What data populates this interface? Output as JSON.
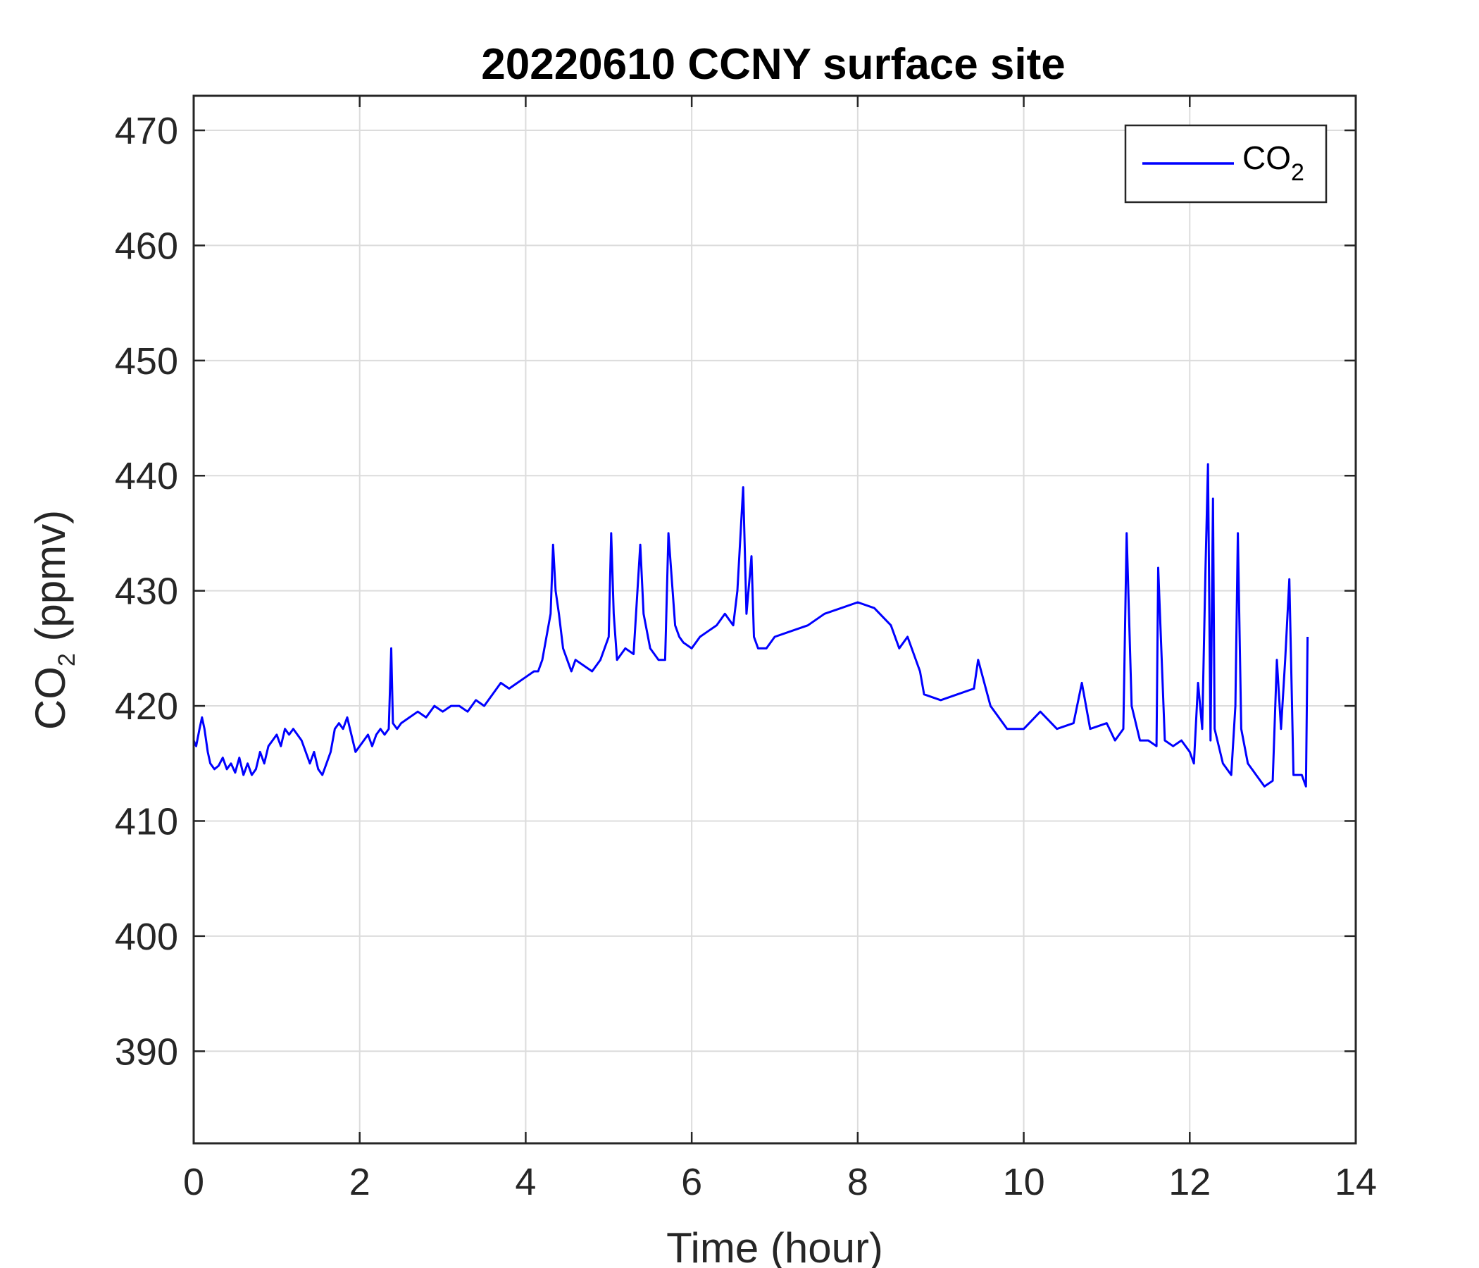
{
  "chart_data": {
    "type": "line",
    "title": "20220610 CCNY surface site",
    "xlabel": "Time (hour)",
    "ylabel_main": "CO",
    "ylabel_sub": "2",
    "ylabel_unit": " (ppmv)",
    "xlim": [
      0,
      14
    ],
    "ylim": [
      382,
      473
    ],
    "xticks": [
      0,
      2,
      4,
      6,
      8,
      10,
      12,
      14
    ],
    "yticks": [
      390,
      400,
      410,
      420,
      430,
      440,
      450,
      460,
      470
    ],
    "grid": true,
    "legend_position": "top-right",
    "colors": {
      "line": "#0000ff",
      "grid": "#dcdcdc",
      "axis": "#262626"
    },
    "series": [
      {
        "name_main": "CO",
        "name_sub": "2",
        "x": [
          0,
          0.03,
          0.07,
          0.1,
          0.13,
          0.17,
          0.2,
          0.25,
          0.3,
          0.35,
          0.4,
          0.45,
          0.5,
          0.55,
          0.6,
          0.65,
          0.7,
          0.75,
          0.8,
          0.85,
          0.9,
          0.95,
          1.0,
          1.05,
          1.1,
          1.15,
          1.2,
          1.25,
          1.3,
          1.35,
          1.4,
          1.45,
          1.5,
          1.55,
          1.6,
          1.65,
          1.7,
          1.75,
          1.8,
          1.85,
          1.9,
          1.95,
          2.0,
          2.05,
          2.1,
          2.15,
          2.2,
          2.25,
          2.3,
          2.35,
          2.38,
          2.4,
          2.45,
          2.5,
          2.6,
          2.7,
          2.8,
          2.9,
          3.0,
          3.1,
          3.2,
          3.3,
          3.4,
          3.5,
          3.6,
          3.7,
          3.8,
          3.9,
          4.0,
          4.1,
          4.15,
          4.2,
          4.25,
          4.3,
          4.33,
          4.36,
          4.4,
          4.45,
          4.5,
          4.55,
          4.6,
          4.7,
          4.8,
          4.9,
          5.0,
          5.03,
          5.06,
          5.1,
          5.2,
          5.3,
          5.38,
          5.42,
          5.5,
          5.6,
          5.68,
          5.72,
          5.8,
          5.85,
          5.9,
          6.0,
          6.1,
          6.2,
          6.3,
          6.4,
          6.5,
          6.55,
          6.62,
          6.66,
          6.72,
          6.75,
          6.8,
          6.9,
          7.0,
          7.2,
          7.4,
          7.6,
          7.8,
          8.0,
          8.2,
          8.4,
          8.5,
          8.6,
          8.75,
          8.8,
          9.0,
          9.2,
          9.4,
          9.45,
          9.6,
          9.8,
          10.0,
          10.2,
          10.4,
          10.6,
          10.7,
          10.8,
          11.0,
          11.1,
          11.2,
          11.24,
          11.3,
          11.4,
          11.5,
          11.6,
          11.62,
          11.7,
          11.8,
          11.9,
          12.0,
          12.05,
          12.1,
          12.15,
          12.19,
          12.22,
          12.25,
          12.28,
          12.3,
          12.4,
          12.5,
          12.55,
          12.58,
          12.62,
          12.7,
          12.8,
          12.9,
          13.0,
          13.05,
          13.1,
          13.15,
          13.2,
          13.25,
          13.3,
          13.35,
          13.4,
          13.42
        ],
        "y": [
          417,
          416.5,
          418,
          419,
          418,
          416,
          415,
          414.5,
          414.8,
          415.5,
          414.5,
          415,
          414.2,
          415.5,
          414,
          415,
          414,
          414.5,
          416,
          415,
          416.5,
          417,
          417.5,
          416.5,
          418,
          417.5,
          418,
          417.5,
          417,
          416,
          415,
          416,
          414.5,
          414,
          415,
          416,
          418,
          418.5,
          418,
          419,
          417.5,
          416,
          416.5,
          417,
          417.5,
          416.5,
          417.5,
          418,
          417.5,
          418,
          425,
          418.5,
          418,
          418.5,
          419,
          419.5,
          419,
          420,
          419.5,
          420,
          420,
          419.5,
          420.5,
          420,
          421,
          422,
          421.5,
          422,
          422.5,
          423,
          423,
          424,
          426,
          428,
          434,
          430,
          428,
          425,
          424,
          423,
          424,
          423.5,
          423,
          424,
          426,
          435,
          428,
          424,
          425,
          424.5,
          434,
          428,
          425,
          424,
          424,
          435,
          427,
          426,
          425.5,
          425,
          426,
          426.5,
          427,
          428,
          427,
          430,
          439,
          428,
          433,
          426,
          425,
          425,
          426,
          426.5,
          427,
          428,
          428.5,
          429,
          428.5,
          427,
          425,
          426,
          423,
          421,
          420.5,
          421,
          421.5,
          424,
          420,
          418,
          418,
          419.5,
          418,
          418.5,
          422,
          418,
          418.5,
          417,
          418,
          435,
          420,
          417,
          417,
          416.5,
          432,
          417,
          416.5,
          417,
          416,
          415,
          422,
          418,
          432,
          441,
          417,
          438,
          418,
          415,
          414,
          420,
          435,
          418,
          415,
          414,
          413,
          413.5,
          424,
          418,
          424,
          431,
          414,
          414,
          414,
          413,
          426
        ]
      }
    ]
  }
}
